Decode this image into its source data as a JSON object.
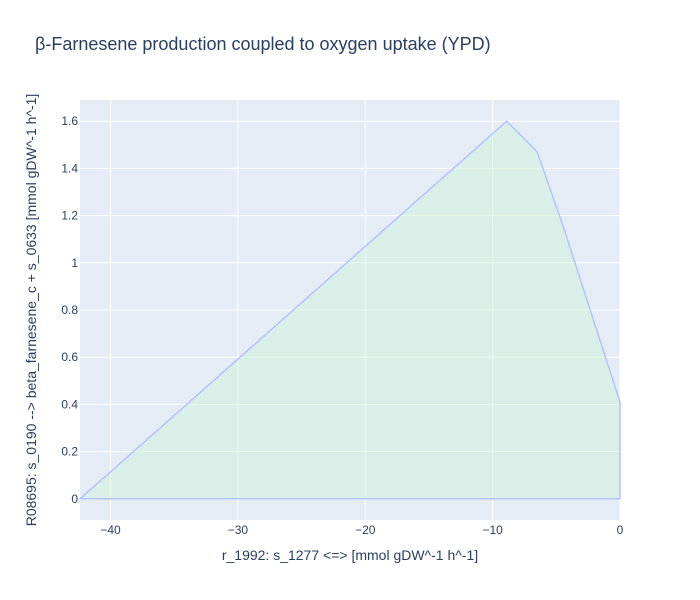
{
  "chart_data": {
    "type": "area",
    "title": "β-Farnesene production coupled to oxygen uptake (YPD)",
    "xlabel": "r_1992: s_1277 <=>  [mmol gDW^-1 h^-1]",
    "ylabel": "R08695: s_0190 --> beta_farnesene_c + s_0633 [mmol gDW^-1 h^-1]",
    "xlim": [
      -42.4,
      0
    ],
    "ylim": [
      -0.09,
      1.69
    ],
    "x_ticks": [
      -40,
      -30,
      -20,
      -10,
      0
    ],
    "x_tick_labels": [
      "−40",
      "−30",
      "−20",
      "−10",
      "0"
    ],
    "y_ticks": [
      0,
      0.2,
      0.4,
      0.6,
      0.8,
      1,
      1.2,
      1.4,
      1.6
    ],
    "y_tick_labels": [
      "0",
      "0.2",
      "0.4",
      "0.6",
      "0.8",
      "1",
      "1.2",
      "1.4",
      "1.6"
    ],
    "grid": true,
    "colors": {
      "plot_bg": "#e5ecf6",
      "grid": "#ffffff",
      "line": "#b3c3fb",
      "fill": "#c9f5d6",
      "text": "#2a3f5f"
    },
    "series": [
      {
        "x": [
          -42.4,
          -8.9,
          -6.5,
          -4.5,
          0,
          0,
          -42.4
        ],
        "y": [
          0,
          1.6,
          1.47,
          1.16,
          0.41,
          0,
          0
        ]
      }
    ]
  }
}
